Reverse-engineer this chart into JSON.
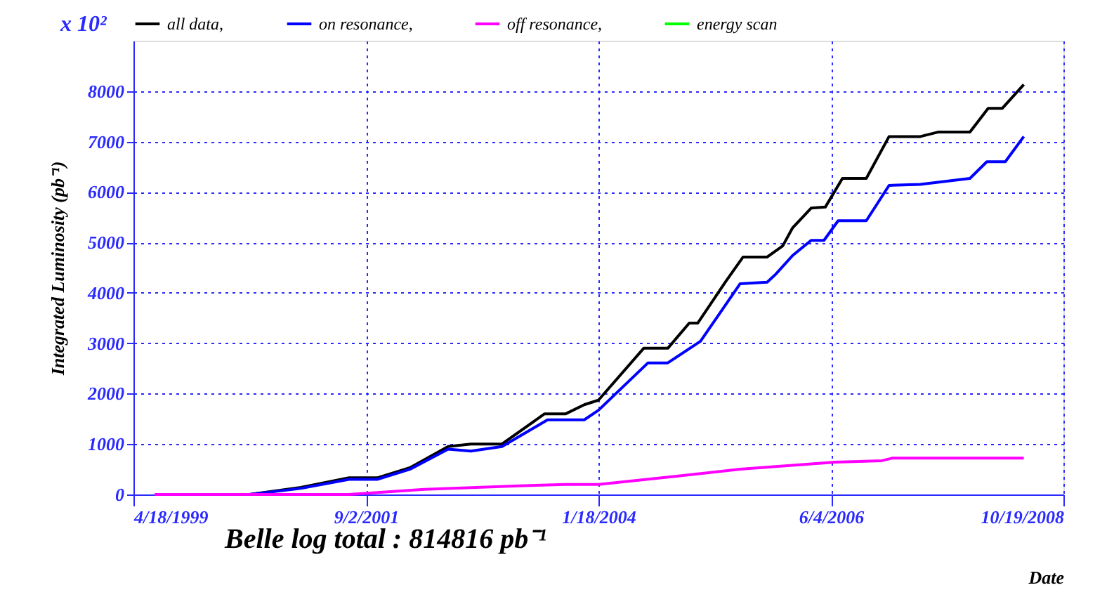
{
  "chart_data": {
    "type": "line",
    "xlabel": "Date",
    "ylabel": "Integrated Luminosity (pb⁻¹)",
    "annotations": [
      "x 10²",
      "Belle log total : 814816 pb⁻¹"
    ],
    "xlim": [
      "1999-04-18",
      "2008-10-19"
    ],
    "xticks": [
      {
        "value": "1999-04-18",
        "label": "4/18/1999"
      },
      {
        "value": "2001-09-02",
        "label": "9/2/2001"
      },
      {
        "value": "2004-01-18",
        "label": "1/18/2004"
      },
      {
        "value": "2006-06-04",
        "label": "6/4/2006"
      },
      {
        "value": "2008-10-19",
        "label": "10/19/2008"
      }
    ],
    "ylim": [
      0,
      9000
    ],
    "yticks": [
      0,
      1000,
      2000,
      3000,
      4000,
      5000,
      6000,
      7000,
      8000
    ],
    "grid": true,
    "legend": "top",
    "line_style": "solid",
    "marker": "none",
    "series": [
      {
        "name": "all data,",
        "color": "#000000",
        "x": [
          "2000-06-25",
          "2001-01-02",
          "2001-07-01",
          "2001-10-14",
          "2002-02-13",
          "2002-07-06",
          "2002-09-29",
          "2003-01-23",
          "2003-07-01",
          "2003-09-18",
          "2003-11-26",
          "2004-01-18",
          "2004-07-05",
          "2004-10-03",
          "2004-12-22",
          "2005-01-23",
          "2005-05-08",
          "2005-07-11",
          "2005-10-09",
          "2005-12-06",
          "2006-01-12",
          "2006-03-22",
          "2006-05-14",
          "2006-07-17",
          "2006-10-14",
          "2007-01-07",
          "2007-05-04",
          "2007-07-11",
          "2007-11-05",
          "2008-01-12",
          "2008-03-05",
          "2008-05-24"
        ],
        "values": [
          0,
          140,
          330,
          330,
          530,
          950,
          1000,
          1000,
          1600,
          1600,
          1780,
          1870,
          2900,
          2900,
          3400,
          3400,
          4230,
          4710,
          4710,
          4930,
          5290,
          5680,
          5700,
          6270,
          6270,
          7100,
          7100,
          7190,
          7190,
          7660,
          7660,
          8130
        ]
      },
      {
        "name": "on resonance,",
        "color": "#0000ff",
        "x": [
          "2000-06-25",
          "2001-01-02",
          "2001-07-01",
          "2001-10-14",
          "2002-02-13",
          "2002-07-06",
          "2002-09-29",
          "2003-01-23",
          "2003-07-12",
          "2003-09-18",
          "2003-11-26",
          "2004-01-18",
          "2004-07-21",
          "2004-10-03",
          "2005-02-02",
          "2005-06-30",
          "2005-10-09",
          "2005-11-10",
          "2006-01-12",
          "2006-03-22",
          "2006-05-09",
          "2006-07-01",
          "2006-10-14",
          "2007-01-07",
          "2007-05-04",
          "2007-11-05",
          "2008-01-07",
          "2008-03-16",
          "2008-05-24"
        ],
        "values": [
          0,
          120,
          300,
          300,
          500,
          900,
          860,
          950,
          1480,
          1480,
          1480,
          1670,
          2610,
          2610,
          3040,
          4180,
          4210,
          4370,
          4740,
          5040,
          5040,
          5430,
          5430,
          6130,
          6150,
          6270,
          6600,
          6600,
          7100
        ]
      },
      {
        "name": "off resonance,",
        "color": "#ff00ff",
        "x": [
          "1999-07-06",
          "2001-07-01",
          "2002-04-07",
          "2003-03-28",
          "2003-09-18",
          "2004-01-18",
          "2004-10-30",
          "2005-06-30",
          "2006-06-20",
          "2006-12-12",
          "2007-01-18",
          "2008-05-24"
        ],
        "values": [
          0,
          0,
          100,
          170,
          200,
          200,
          360,
          500,
          640,
          670,
          720,
          720
        ]
      },
      {
        "name": "energy scan",
        "color": "#00ff00"
      }
    ]
  }
}
